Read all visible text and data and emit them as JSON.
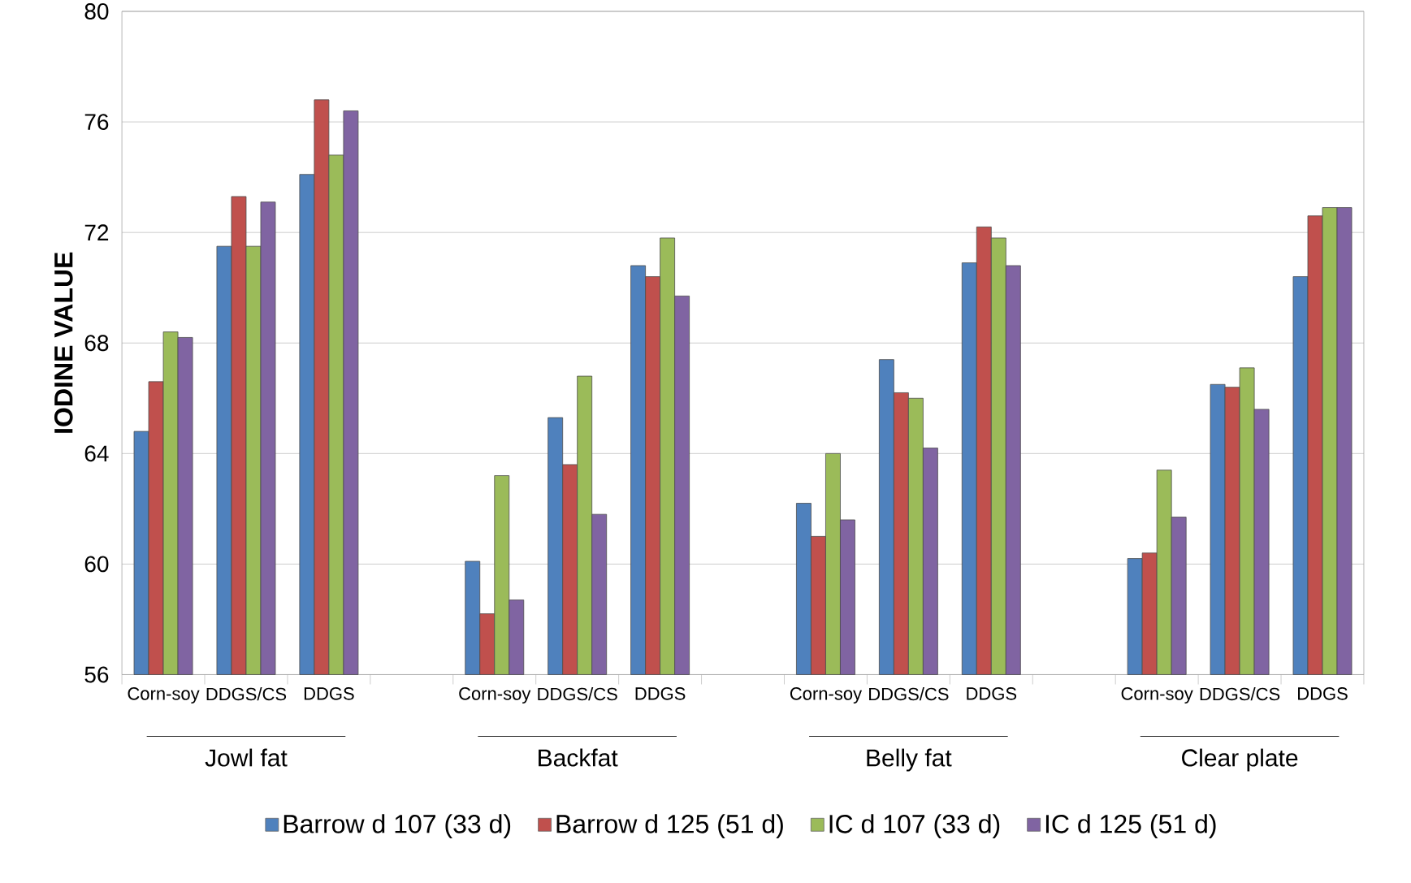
{
  "chart_data": {
    "type": "bar",
    "ylabel": "IODINE  VALUE",
    "categories": [
      "Corn-soy",
      "DDGS/CS",
      "DDGS",
      null,
      "Corn-soy",
      "DDGS/CS",
      "DDGS",
      null,
      "Corn-soy",
      "DDGS/CS",
      "DDGS",
      null,
      "Corn-soy",
      "DDGS/CS",
      "DDGS"
    ],
    "series": [
      {
        "name": "Barrow d 107 (33 d)",
        "color": "#4f81bd",
        "values": [
          64.8,
          71.5,
          74.1,
          null,
          60.1,
          65.3,
          70.8,
          null,
          62.2,
          67.4,
          70.9,
          null,
          60.2,
          66.5,
          70.4
        ]
      },
      {
        "name": "Barrow d 125 (51 d)",
        "color": "#c0504d",
        "values": [
          66.6,
          73.3,
          76.8,
          null,
          58.2,
          63.6,
          70.4,
          null,
          61.0,
          66.2,
          72.2,
          null,
          60.4,
          66.4,
          72.6
        ]
      },
      {
        "name": "IC d 107 (33 d)",
        "color": "#9bbb59",
        "values": [
          68.4,
          71.5,
          74.8,
          null,
          63.2,
          66.8,
          71.8,
          null,
          64.0,
          66.0,
          71.8,
          null,
          63.4,
          67.1,
          72.9
        ]
      },
      {
        "name": "IC d 125 (51 d)",
        "color": "#8064a2",
        "values": [
          68.2,
          73.1,
          76.4,
          null,
          58.7,
          61.8,
          69.7,
          null,
          61.6,
          64.2,
          70.8,
          null,
          61.7,
          65.6,
          72.9
        ]
      }
    ],
    "annotations": [
      "Jowl fat",
      "Backfat",
      "Belly fat",
      "Clear plate"
    ],
    "ylim": [
      56,
      80
    ],
    "yticks": [
      56,
      60,
      64,
      68,
      72,
      76,
      80
    ],
    "grid": "y",
    "legend": "bottom"
  }
}
